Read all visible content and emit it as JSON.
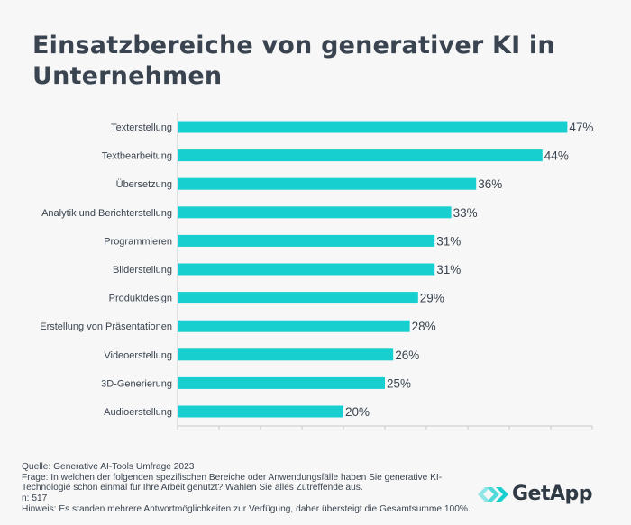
{
  "chart_data": {
    "type": "bar",
    "orientation": "horizontal",
    "title": "Einsatzbereiche von generativer KI in Unternehmen",
    "categories": [
      "Texterstellung",
      "Textbearbeitung",
      "Übersetzung",
      "Analytik und Berichterstellung",
      "Programmieren",
      "Bilderstellung",
      "Produktdesign",
      "Erstellung von Präsentationen",
      "Videoerstellung",
      "3D-Generierung",
      "Audioerstellung"
    ],
    "values": [
      47,
      44,
      36,
      33,
      31,
      31,
      29,
      28,
      26,
      25,
      20
    ],
    "value_labels": [
      "47%",
      "44%",
      "36%",
      "33%",
      "31%",
      "31%",
      "29%",
      "28%",
      "26%",
      "25%",
      "20%"
    ],
    "xlim": [
      0,
      50
    ],
    "x_tick_step": 5,
    "grid": false,
    "bar_color": "#17cfcf"
  },
  "footer": {
    "source": "Quelle: Generative AI-Tools Umfrage 2023",
    "question": "Frage: In welchen der folgenden spezifischen Bereiche oder Anwendungsfälle haben Sie generative KI-Technologie schon einmal für Ihre Arbeit genutzt? Wählen Sie alles Zutreffende aus.",
    "n": "n: 517",
    "note": "Hinweis: Es standen mehrere Antwortmöglichkeiten zur Verfügung, daher übersteigt die Gesamtsumme 100%."
  },
  "logo": {
    "text": "GetApp",
    "icon": "getapp-chevrons-icon",
    "color": "#17cfcf"
  }
}
